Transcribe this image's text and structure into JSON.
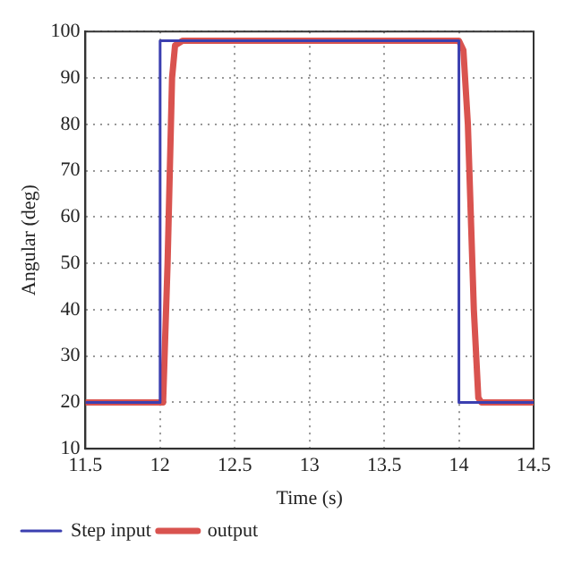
{
  "chart_data": {
    "type": "line",
    "xlabel": "Time (s)",
    "ylabel": "Angular (deg)",
    "xlim": [
      11.5,
      14.5
    ],
    "xticks": [
      11.5,
      12,
      12.5,
      13,
      13.5,
      14,
      14.5
    ],
    "ylim": [
      10,
      100
    ],
    "yticks": [
      10,
      20,
      30,
      40,
      50,
      60,
      70,
      80,
      90,
      100
    ],
    "grid": true,
    "legend": "bottom left",
    "marker": "none",
    "line_style": "solid",
    "series": [
      {
        "name": "Step input",
        "color": "#3b3fb0",
        "x": [
          11.5,
          12,
          12,
          14,
          14,
          14.5
        ],
        "values": [
          20,
          20,
          98,
          98,
          20,
          20
        ]
      },
      {
        "name": "output",
        "color": "#d9534f",
        "x": [
          11.5,
          12.02,
          12.05,
          12.08,
          12.1,
          12.15,
          14,
          14.03,
          14.06,
          14.1,
          14.13,
          14.15,
          14.5
        ],
        "values": [
          20,
          20,
          50,
          90,
          97,
          98,
          98,
          96,
          80,
          40,
          21,
          20,
          20
        ]
      }
    ]
  }
}
